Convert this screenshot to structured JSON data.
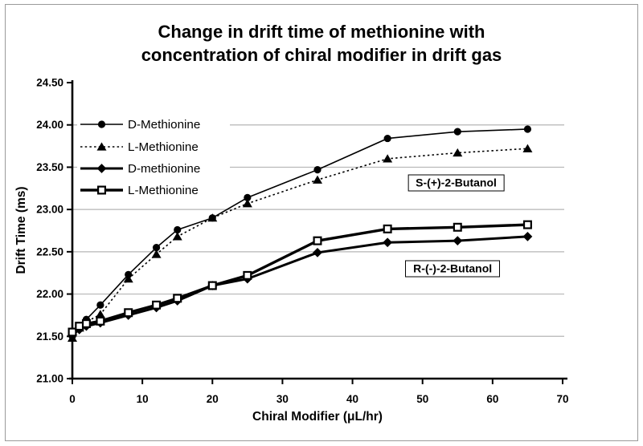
{
  "figure": {
    "title_line1": "Change in drift time of methionine with",
    "title_line2": "concentration of chiral modifier in drift gas"
  },
  "chart_data": {
    "type": "line",
    "title": "Change in drift time of methionine with concentration of chiral modifier in drift gas",
    "xlabel": "Chiral Modifier (μL/hr)",
    "ylabel": "Drift Time (ms)",
    "xlim": [
      0,
      70
    ],
    "ylim": [
      21.0,
      24.5
    ],
    "grid": "horizontal",
    "legend_position": "top-left-inside",
    "x_tick_values": [
      0,
      10,
      20,
      30,
      40,
      50,
      60,
      70
    ],
    "x_tick_labels": [
      "0",
      "10",
      "20",
      "30",
      "40",
      "50",
      "60",
      "70"
    ],
    "y_tick_values": [
      21.0,
      21.5,
      22.0,
      22.5,
      23.0,
      23.5,
      24.0,
      24.5
    ],
    "y_tick_labels": [
      "21.00",
      "21.50",
      "22.00",
      "22.50",
      "23.00",
      "23.50",
      "24.00",
      "24.50"
    ],
    "gridline_values": [
      21.5,
      22.0,
      22.5,
      23.0,
      23.5,
      24.0
    ],
    "x": [
      0,
      1,
      2,
      4,
      8,
      12,
      15,
      20,
      25,
      35,
      45,
      55,
      65
    ],
    "series": [
      {
        "name": "D-Methionine",
        "marker": "circle",
        "line_style": "solid",
        "line_width": 1.6,
        "values": [
          21.5,
          21.62,
          21.7,
          21.87,
          22.23,
          22.55,
          22.76,
          22.9,
          23.14,
          23.47,
          23.84,
          23.92,
          23.95
        ]
      },
      {
        "name": "L-Methionine",
        "marker": "triangle",
        "line_style": "dotted",
        "line_width": 1.6,
        "values": [
          21.48,
          21.6,
          21.67,
          21.76,
          22.18,
          22.47,
          22.68,
          22.9,
          23.07,
          23.35,
          23.6,
          23.67,
          23.72
        ]
      },
      {
        "name": "D-methionine",
        "marker": "diamond",
        "line_style": "solid",
        "line_width": 3.0,
        "values": [
          21.52,
          21.58,
          21.62,
          21.66,
          21.75,
          21.84,
          21.92,
          22.1,
          22.18,
          22.49,
          22.61,
          22.63,
          22.68
        ]
      },
      {
        "name": "L-Methionine",
        "marker": "square-open",
        "line_style": "solid",
        "line_width": 3.4,
        "values": [
          21.55,
          21.62,
          21.65,
          21.68,
          21.78,
          21.87,
          21.95,
          22.1,
          22.22,
          22.63,
          22.77,
          22.79,
          22.82
        ]
      }
    ],
    "annotations": [
      {
        "text": "S-(+)-2-Butanol",
        "x": 54.8,
        "y": 23.31
      },
      {
        "text": "R-(-)-2-Butanol",
        "x": 54.3,
        "y": 22.3
      }
    ],
    "colors": {
      "series": "#000000",
      "grid": "#b5b5b5",
      "axis": "#000000",
      "frame": "#9a9a9a",
      "background": "#ffffff"
    }
  }
}
